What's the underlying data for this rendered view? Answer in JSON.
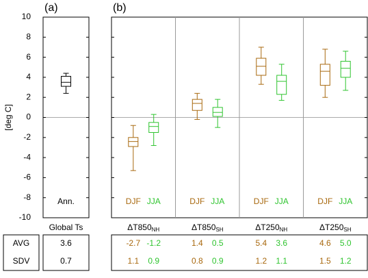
{
  "chart_data": {
    "type": "box",
    "panel_labels": [
      "(a)",
      "(b)"
    ],
    "y_label": "[deg C]",
    "ylim": [
      -10,
      10
    ],
    "yticks": [
      -10,
      -8,
      -6,
      -4,
      -2,
      0,
      2,
      4,
      6,
      8,
      10
    ],
    "zero_line": true,
    "stats_rows": [
      "AVG",
      "SDV"
    ],
    "groups": [
      {
        "label": "Global Ts",
        "panel": 0,
        "boxes": [
          {
            "name": "Ann.",
            "color": "#000000",
            "whislo": 2.4,
            "q1": 3.1,
            "med": 3.5,
            "q3": 4.1,
            "whishi": 4.4,
            "stats": [
              "3.6",
              "0.7"
            ]
          }
        ]
      },
      {
        "label": "ΔT850",
        "sub": "NH",
        "panel": 1,
        "boxes": [
          {
            "name": "DJF",
            "color": "#a8680e",
            "whislo": -5.3,
            "q1": -2.9,
            "med": -2.4,
            "q3": -2.0,
            "whishi": -0.8,
            "stats": [
              "-2.7",
              "1.1"
            ]
          },
          {
            "name": "JJA",
            "color": "#2ec42e",
            "whislo": -2.8,
            "q1": -1.5,
            "med": -0.9,
            "q3": -0.5,
            "whishi": 0.3,
            "stats": [
              "-1.2",
              "0.9"
            ]
          }
        ]
      },
      {
        "label": "ΔT850",
        "sub": "SH",
        "panel": 1,
        "boxes": [
          {
            "name": "DJF",
            "color": "#a8680e",
            "whislo": -0.2,
            "q1": 0.7,
            "med": 1.4,
            "q3": 1.8,
            "whishi": 2.4,
            "stats": [
              "1.4",
              "0.8"
            ]
          },
          {
            "name": "JJA",
            "color": "#2ec42e",
            "whislo": -1.0,
            "q1": 0.1,
            "med": 0.5,
            "q3": 1.0,
            "whishi": 1.8,
            "stats": [
              "0.5",
              "0.9"
            ]
          }
        ]
      },
      {
        "label": "ΔT250",
        "sub": "NH",
        "panel": 1,
        "boxes": [
          {
            "name": "DJF",
            "color": "#a8680e",
            "whislo": 3.3,
            "q1": 4.2,
            "med": 5.1,
            "q3": 5.9,
            "whishi": 7.0,
            "stats": [
              "5.4",
              "1.2"
            ]
          },
          {
            "name": "JJA",
            "color": "#2ec42e",
            "whislo": 1.7,
            "q1": 2.3,
            "med": 3.6,
            "q3": 4.2,
            "whishi": 5.3,
            "stats": [
              "3.6",
              "1.1"
            ]
          }
        ]
      },
      {
        "label": "ΔT250",
        "sub": "SH",
        "panel": 1,
        "boxes": [
          {
            "name": "DJF",
            "color": "#a8680e",
            "whislo": 2.0,
            "q1": 3.2,
            "med": 4.6,
            "q3": 5.3,
            "whishi": 6.8,
            "stats": [
              "4.6",
              "1.5"
            ]
          },
          {
            "name": "JJA",
            "color": "#2ec42e",
            "whislo": 2.7,
            "q1": 4.0,
            "med": 4.9,
            "q3": 5.6,
            "whishi": 6.6,
            "stats": [
              "5.0",
              "1.2"
            ]
          }
        ]
      }
    ]
  }
}
